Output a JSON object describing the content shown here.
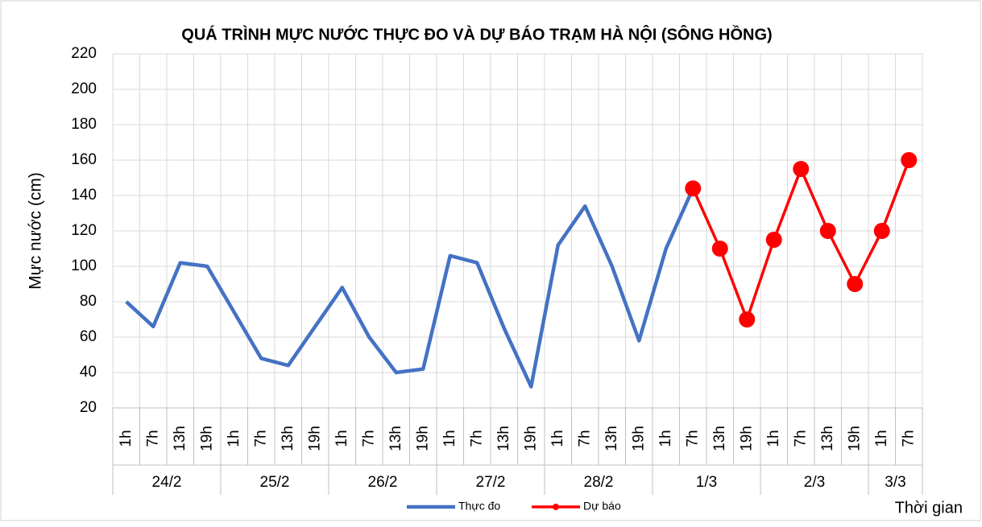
{
  "chart_data": {
    "type": "line",
    "title": "QUÁ TRÌNH MỰC NƯỚC THỰC ĐO VÀ DỰ BÁO TRẠM HÀ NỘI (SÔNG HỒNG)",
    "y_label": "Mực nước (cm)",
    "x_label": "Thời gian",
    "categories": [
      "1h",
      "7h",
      "13h",
      "19h",
      "1h",
      "7h",
      "13h",
      "19h",
      "1h",
      "7h",
      "13h",
      "19h",
      "1h",
      "7h",
      "13h",
      "19h",
      "1h",
      "7h",
      "13h",
      "19h",
      "1h",
      "7h",
      "13h",
      "19h",
      "1h",
      "7h",
      "13h",
      "19h",
      "1h",
      "7h"
    ],
    "x_groups": [
      {
        "label": "24/2",
        "count": 4
      },
      {
        "label": "25/2",
        "count": 4
      },
      {
        "label": "26/2",
        "count": 4
      },
      {
        "label": "27/2",
        "count": 4
      },
      {
        "label": "28/2",
        "count": 4
      },
      {
        "label": "1/3",
        "count": 4
      },
      {
        "label": "2/3",
        "count": 4
      },
      {
        "label": "3/3",
        "count": 2
      }
    ],
    "series": [
      {
        "name": "Thực đo",
        "color": "#4472c4",
        "markers": false,
        "values": [
          80,
          66,
          102,
          100,
          74,
          48,
          44,
          66,
          88,
          60,
          40,
          42,
          106,
          102,
          65,
          32,
          112,
          134,
          100,
          58,
          110,
          144,
          null,
          null,
          null,
          null,
          null,
          null,
          null,
          null
        ]
      },
      {
        "name": "Dự báo",
        "color": "#ff0000",
        "markers": true,
        "values": [
          null,
          null,
          null,
          null,
          null,
          null,
          null,
          null,
          null,
          null,
          null,
          null,
          null,
          null,
          null,
          null,
          null,
          null,
          null,
          null,
          null,
          144,
          110,
          70,
          115,
          155,
          120,
          90,
          120,
          160
        ]
      }
    ],
    "ylim": [
      20,
      220
    ],
    "yticks": [
      20,
      40,
      60,
      80,
      100,
      120,
      140,
      160,
      180,
      200,
      220
    ],
    "grid": true
  }
}
